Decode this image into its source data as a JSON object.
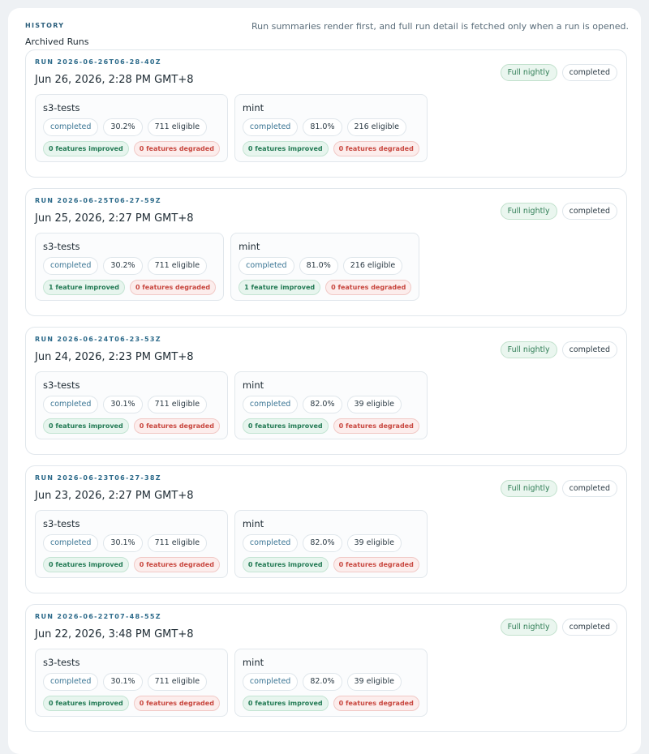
{
  "header": {
    "label": "HISTORY",
    "note": "Run summaries render first, and full run detail is fetched only when a run is opened."
  },
  "section_title": "Archived Runs",
  "runs": [
    {
      "id": "RUN 2026-06-26T06-28-40Z",
      "date": "Jun 26, 2026, 2:28 PM GMT+8",
      "badges": [
        "Full nightly",
        "completed"
      ],
      "suites": [
        {
          "name": "s3-tests",
          "status": "completed",
          "pass_rate": "30.2%",
          "eligible": "711 eligible",
          "improved": "0 features improved",
          "degraded": "0 features degraded"
        },
        {
          "name": "mint",
          "status": "completed",
          "pass_rate": "81.0%",
          "eligible": "216 eligible",
          "improved": "0 features improved",
          "degraded": "0 features degraded"
        }
      ]
    },
    {
      "id": "RUN 2026-06-25T06-27-59Z",
      "date": "Jun 25, 2026, 2:27 PM GMT+8",
      "badges": [
        "Full nightly",
        "completed"
      ],
      "suites": [
        {
          "name": "s3-tests",
          "status": "completed",
          "pass_rate": "30.2%",
          "eligible": "711 eligible",
          "improved": "1 feature improved",
          "degraded": "0 features degraded"
        },
        {
          "name": "mint",
          "status": "completed",
          "pass_rate": "81.0%",
          "eligible": "216 eligible",
          "improved": "1 feature improved",
          "degraded": "0 features degraded"
        }
      ]
    },
    {
      "id": "RUN 2026-06-24T06-23-53Z",
      "date": "Jun 24, 2026, 2:23 PM GMT+8",
      "badges": [
        "Full nightly",
        "completed"
      ],
      "suites": [
        {
          "name": "s3-tests",
          "status": "completed",
          "pass_rate": "30.1%",
          "eligible": "711 eligible",
          "improved": "0 features improved",
          "degraded": "0 features degraded"
        },
        {
          "name": "mint",
          "status": "completed",
          "pass_rate": "82.0%",
          "eligible": "39 eligible",
          "improved": "0 features improved",
          "degraded": "0 features degraded"
        }
      ]
    },
    {
      "id": "RUN 2026-06-23T06-27-38Z",
      "date": "Jun 23, 2026, 2:27 PM GMT+8",
      "badges": [
        "Full nightly",
        "completed"
      ],
      "suites": [
        {
          "name": "s3-tests",
          "status": "completed",
          "pass_rate": "30.1%",
          "eligible": "711 eligible",
          "improved": "0 features improved",
          "degraded": "0 features degraded"
        },
        {
          "name": "mint",
          "status": "completed",
          "pass_rate": "82.0%",
          "eligible": "39 eligible",
          "improved": "0 features improved",
          "degraded": "0 features degraded"
        }
      ]
    },
    {
      "id": "RUN 2026-06-22T07-48-55Z",
      "date": "Jun 22, 2026, 3:48 PM GMT+8",
      "badges": [
        "Full nightly",
        "completed"
      ],
      "suites": [
        {
          "name": "s3-tests",
          "status": "completed",
          "pass_rate": "30.1%",
          "eligible": "711 eligible",
          "improved": "0 features improved",
          "degraded": "0 features degraded"
        },
        {
          "name": "mint",
          "status": "completed",
          "pass_rate": "82.0%",
          "eligible": "39 eligible",
          "improved": "0 features improved",
          "degraded": "0 features degraded"
        }
      ]
    }
  ]
}
